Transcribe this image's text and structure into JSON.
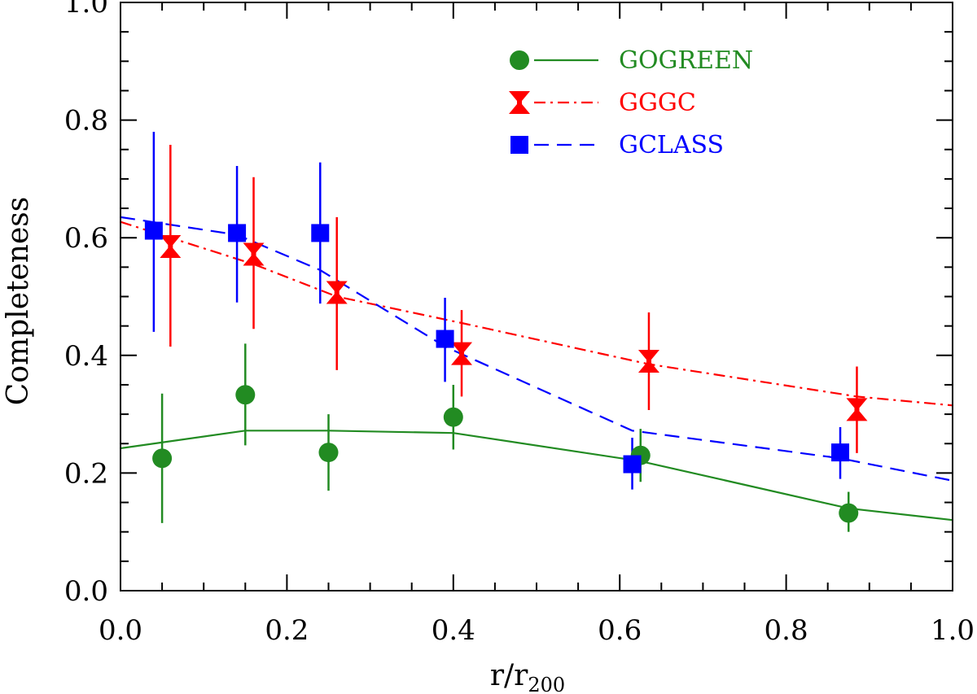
{
  "chart_data": {
    "type": "scatter",
    "title": "",
    "xlabel": "r/r",
    "xlabel_sub": "200",
    "ylabel": "Completeness",
    "xlim": [
      0.0,
      1.0
    ],
    "ylim": [
      0.0,
      1.0
    ],
    "xticks": [
      "0.0",
      "0.2",
      "0.4",
      "0.6",
      "0.8",
      "1.0"
    ],
    "yticks": [
      "0.0",
      "0.2",
      "0.4",
      "0.6",
      "0.8",
      "1.0"
    ],
    "grid": false,
    "legend_position": "top-right",
    "series": [
      {
        "name": "GOGREEN",
        "color": "#228B22",
        "marker": "circle",
        "line_style": "solid",
        "points": [
          {
            "x": 0.05,
            "y": 0.225,
            "ylow": 0.115,
            "yhigh": 0.335
          },
          {
            "x": 0.15,
            "y": 0.333,
            "ylow": 0.247,
            "yhigh": 0.42
          },
          {
            "x": 0.25,
            "y": 0.235,
            "ylow": 0.17,
            "yhigh": 0.3
          },
          {
            "x": 0.4,
            "y": 0.295,
            "ylow": 0.24,
            "yhigh": 0.35
          },
          {
            "x": 0.625,
            "y": 0.23,
            "ylow": 0.185,
            "yhigh": 0.275
          },
          {
            "x": 0.875,
            "y": 0.132,
            "ylow": 0.1,
            "yhigh": 0.168
          }
        ],
        "fit_x": [
          0.0,
          0.15,
          0.25,
          0.4,
          0.625,
          0.875,
          1.0
        ],
        "fit_y": [
          0.242,
          0.272,
          0.272,
          0.268,
          0.22,
          0.14,
          0.12
        ]
      },
      {
        "name": "GGGC",
        "color": "#FF0000",
        "marker": "hourglass",
        "line_style": "dashdot",
        "points": [
          {
            "x": 0.06,
            "y": 0.585,
            "ylow": 0.415,
            "yhigh": 0.758
          },
          {
            "x": 0.16,
            "y": 0.572,
            "ylow": 0.445,
            "yhigh": 0.703
          },
          {
            "x": 0.26,
            "y": 0.507,
            "ylow": 0.375,
            "yhigh": 0.635
          },
          {
            "x": 0.41,
            "y": 0.403,
            "ylow": 0.33,
            "yhigh": 0.477
          },
          {
            "x": 0.635,
            "y": 0.39,
            "ylow": 0.307,
            "yhigh": 0.473
          },
          {
            "x": 0.885,
            "y": 0.308,
            "ylow": 0.234,
            "yhigh": 0.381
          }
        ],
        "fit_x": [
          0.0,
          0.06,
          0.16,
          0.26,
          0.41,
          0.635,
          0.885,
          1.0
        ],
        "fit_y": [
          0.627,
          0.6,
          0.555,
          0.5,
          0.455,
          0.385,
          0.33,
          0.315
        ]
      },
      {
        "name": "GCLASS",
        "color": "#0000FF",
        "marker": "square",
        "line_style": "dashed",
        "points": [
          {
            "x": 0.04,
            "y": 0.612,
            "ylow": 0.44,
            "yhigh": 0.78
          },
          {
            "x": 0.14,
            "y": 0.608,
            "ylow": 0.49,
            "yhigh": 0.722
          },
          {
            "x": 0.24,
            "y": 0.608,
            "ylow": 0.488,
            "yhigh": 0.728
          },
          {
            "x": 0.39,
            "y": 0.428,
            "ylow": 0.355,
            "yhigh": 0.498
          },
          {
            "x": 0.615,
            "y": 0.215,
            "ylow": 0.172,
            "yhigh": 0.26
          },
          {
            "x": 0.865,
            "y": 0.235,
            "ylow": 0.19,
            "yhigh": 0.278
          }
        ],
        "fit_x": [
          0.0,
          0.14,
          0.24,
          0.39,
          0.615,
          0.865,
          1.0
        ],
        "fit_y": [
          0.635,
          0.605,
          0.545,
          0.415,
          0.272,
          0.225,
          0.187
        ]
      }
    ]
  }
}
